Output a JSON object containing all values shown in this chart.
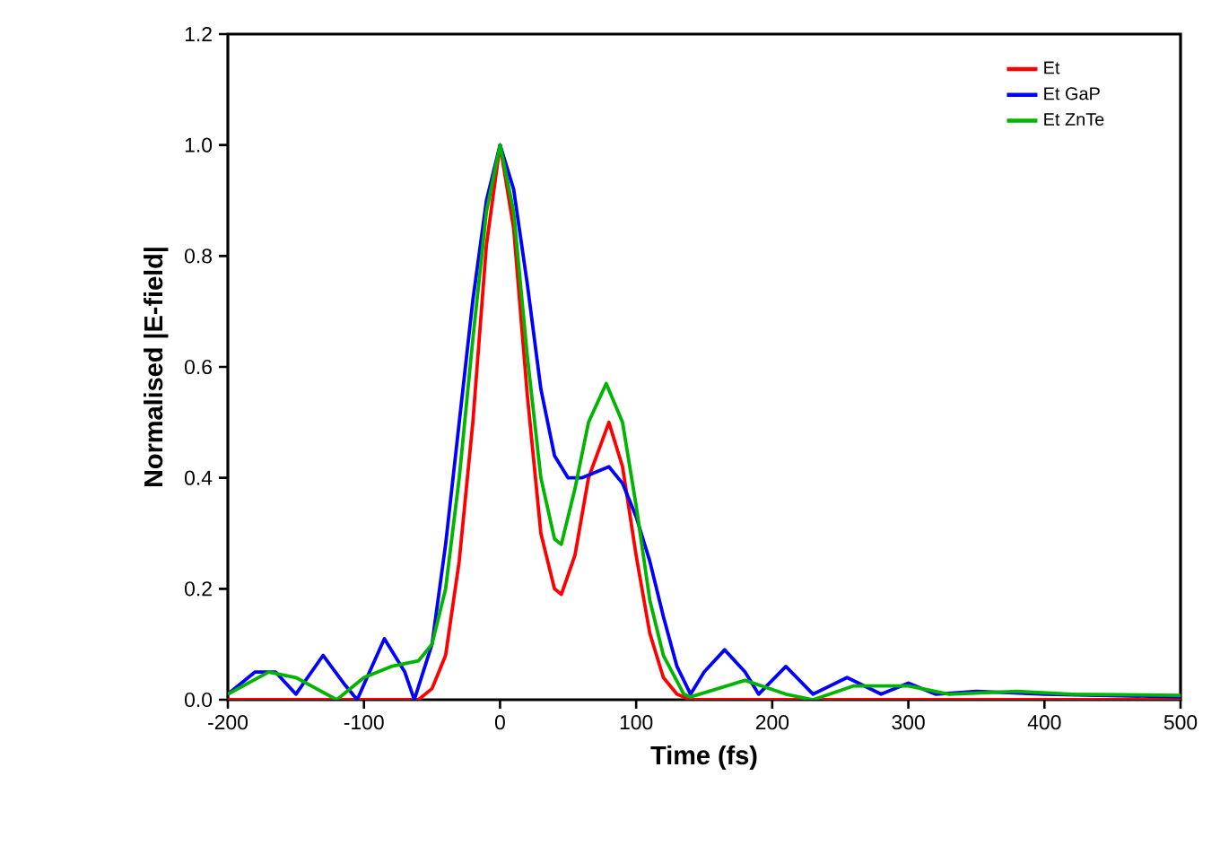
{
  "chart_data": {
    "type": "line",
    "xlabel": "Time (fs)",
    "ylabel": "Normalised |E-field|",
    "xlim": [
      -200,
      500
    ],
    "xticks": [
      -200,
      -100,
      0,
      100,
      200,
      300,
      400,
      500
    ],
    "ylim": [
      0,
      1.2
    ],
    "yticks": [
      {
        "value": 0,
        "label": "0.0"
      },
      0.2,
      0.4,
      0.6,
      0.8,
      {
        "value": 1,
        "label": "1.0"
      },
      1.2
    ],
    "legend": "top right",
    "grid": false,
    "marker": "none",
    "line_style": "solid",
    "series": [
      {
        "name": "Et",
        "color": "#ff0000",
        "x": [
          -200,
          -60,
          -50,
          -40,
          -30,
          -20,
          -10,
          0,
          10,
          20,
          30,
          40,
          45,
          55,
          65,
          80,
          90,
          100,
          110,
          120,
          130,
          140,
          500
        ],
        "values": [
          0,
          0,
          0.02,
          0.08,
          0.25,
          0.5,
          0.82,
          1.0,
          0.85,
          0.55,
          0.3,
          0.2,
          0.19,
          0.26,
          0.4,
          0.5,
          0.42,
          0.26,
          0.12,
          0.04,
          0.01,
          0,
          0
        ]
      },
      {
        "name": "Et GaP",
        "color": "#0000ff",
        "x": [
          -200,
          -180,
          -165,
          -150,
          -130,
          -115,
          -105,
          -85,
          -70,
          -63,
          -50,
          -40,
          -30,
          -20,
          -10,
          0,
          10,
          20,
          30,
          40,
          50,
          60,
          70,
          80,
          90,
          100,
          110,
          120,
          130,
          140,
          150,
          165,
          180,
          190,
          210,
          230,
          255,
          280,
          300,
          320,
          350,
          400,
          500
        ],
        "values": [
          0.01,
          0.05,
          0.05,
          0.01,
          0.08,
          0.03,
          0,
          0.11,
          0.05,
          0,
          0.1,
          0.28,
          0.5,
          0.72,
          0.9,
          1.0,
          0.92,
          0.75,
          0.56,
          0.44,
          0.4,
          0.4,
          0.41,
          0.42,
          0.39,
          0.33,
          0.25,
          0.15,
          0.06,
          0.01,
          0.05,
          0.09,
          0.05,
          0.01,
          0.06,
          0.01,
          0.04,
          0.01,
          0.03,
          0.01,
          0.015,
          0.01,
          0.005
        ]
      },
      {
        "name": "Et ZnTe",
        "color": "#00b400",
        "x": [
          -200,
          -170,
          -150,
          -120,
          -100,
          -80,
          -60,
          -50,
          -40,
          -30,
          -20,
          -10,
          0,
          10,
          20,
          30,
          40,
          45,
          55,
          65,
          78,
          90,
          100,
          110,
          120,
          135,
          140,
          160,
          180,
          210,
          230,
          260,
          300,
          330,
          380,
          420,
          500
        ],
        "values": [
          0.01,
          0.05,
          0.04,
          0,
          0.04,
          0.06,
          0.07,
          0.1,
          0.2,
          0.4,
          0.65,
          0.88,
          1.0,
          0.88,
          0.62,
          0.4,
          0.29,
          0.28,
          0.38,
          0.5,
          0.57,
          0.5,
          0.35,
          0.18,
          0.08,
          0.01,
          0.005,
          0.02,
          0.035,
          0.01,
          0,
          0.025,
          0.025,
          0.01,
          0.015,
          0.01,
          0.008
        ]
      }
    ]
  }
}
